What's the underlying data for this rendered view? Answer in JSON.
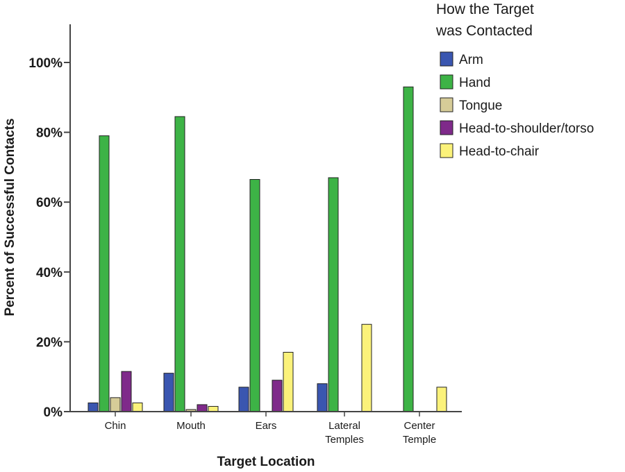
{
  "chart_data": {
    "type": "bar",
    "title": "",
    "xlabel": "Target Location",
    "ylabel": "Percent of Successful Contacts",
    "ylim": [
      0,
      110
    ],
    "yticks": [
      0,
      20,
      40,
      60,
      80,
      100
    ],
    "ytick_labels": [
      "0%",
      "20%",
      "40%",
      "60%",
      "80%",
      "100%"
    ],
    "categories": [
      [
        "Chin"
      ],
      [
        "Mouth"
      ],
      [
        "Ears"
      ],
      [
        "Lateral",
        "Temples"
      ],
      [
        "Center",
        "Temple"
      ]
    ],
    "grid": false,
    "legend": {
      "title": [
        "How the Target",
        "was Contacted"
      ],
      "placement": "top-right"
    },
    "series": [
      {
        "name": "Arm",
        "color": "#3a56b0",
        "values": [
          2.5,
          11,
          7,
          8,
          0
        ]
      },
      {
        "name": "Hand",
        "color": "#3db346",
        "values": [
          79,
          84.5,
          66.5,
          67,
          93
        ]
      },
      {
        "name": "Tongue",
        "color": "#d6cc98",
        "values": [
          4,
          0.6,
          0,
          0,
          0
        ]
      },
      {
        "name": "Head-to-shoulder/torso",
        "color": "#7f2a8a",
        "values": [
          11.5,
          2,
          9,
          0,
          0
        ]
      },
      {
        "name": "Head-to-chair",
        "color": "#fbf27a",
        "values": [
          2.5,
          1.5,
          17,
          25,
          7
        ]
      }
    ]
  }
}
